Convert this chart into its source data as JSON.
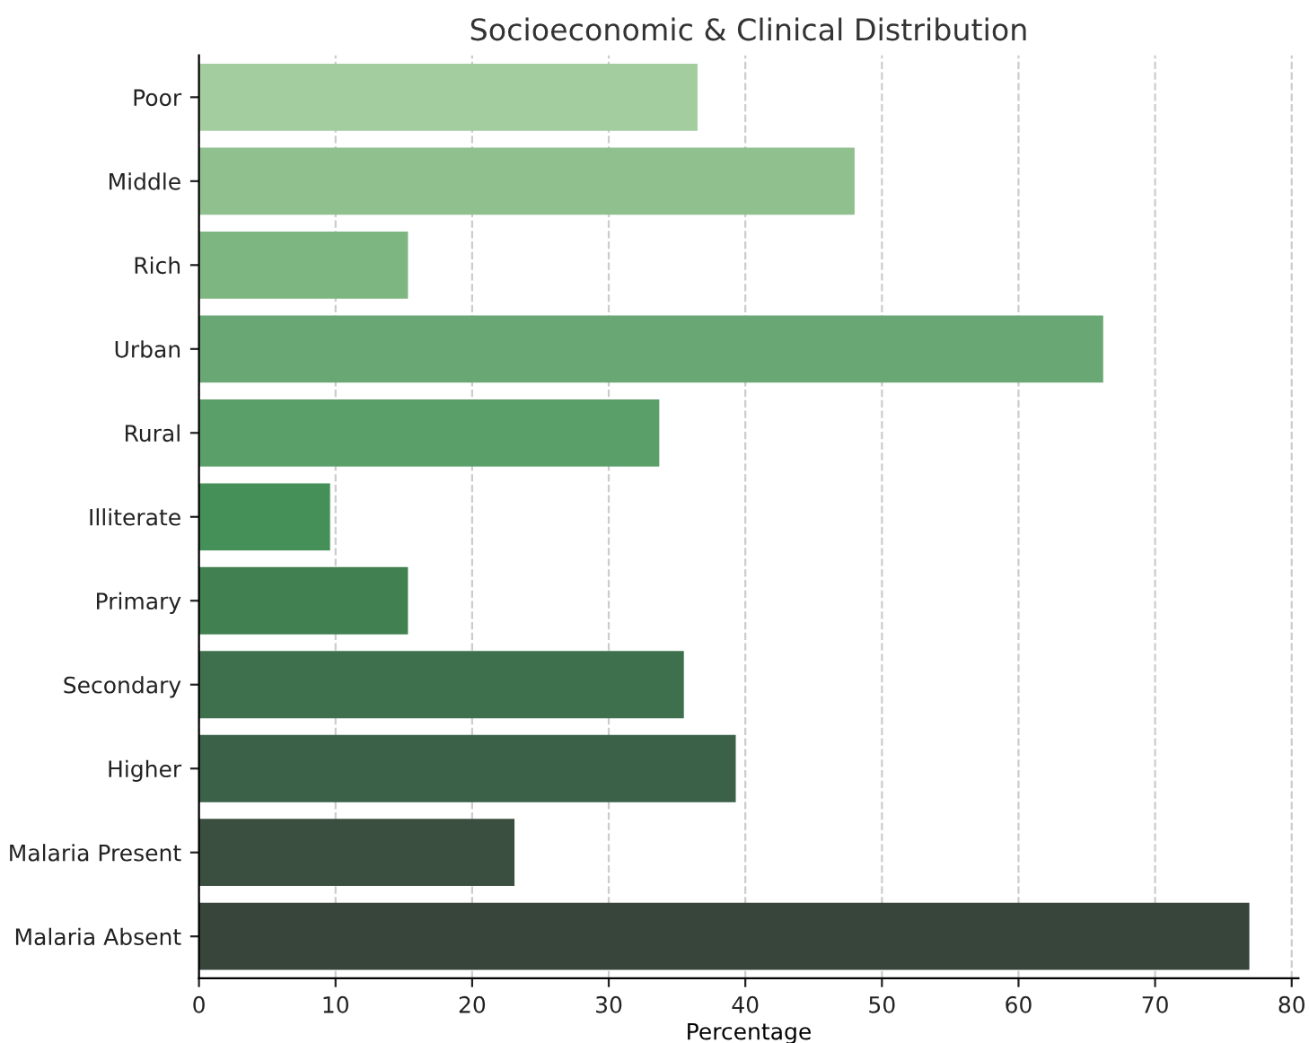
{
  "chart_data": {
    "type": "bar",
    "orientation": "horizontal",
    "title": "Socioeconomic & Clinical Distribution",
    "xlabel": "Percentage",
    "categories": [
      "Poor",
      "Middle",
      "Rich",
      "Urban",
      "Rural",
      "Illiterate",
      "Primary",
      "Secondary",
      "Higher",
      "Malaria Present",
      "Malaria Absent"
    ],
    "values": [
      36.5,
      48.0,
      15.3,
      66.2,
      33.7,
      9.6,
      15.3,
      35.5,
      39.3,
      23.1,
      76.9
    ],
    "colors": [
      "#a3cc9f",
      "#8fc08e",
      "#7db681",
      "#69a874",
      "#5a9e69",
      "#449058",
      "#418050",
      "#3e704d",
      "#3b6248",
      "#3b4f40",
      "#37453b"
    ],
    "xlim": [
      0,
      80.5
    ],
    "xticks": [
      0,
      10,
      20,
      30,
      40,
      50,
      60,
      70,
      80
    ],
    "grid": "x"
  }
}
